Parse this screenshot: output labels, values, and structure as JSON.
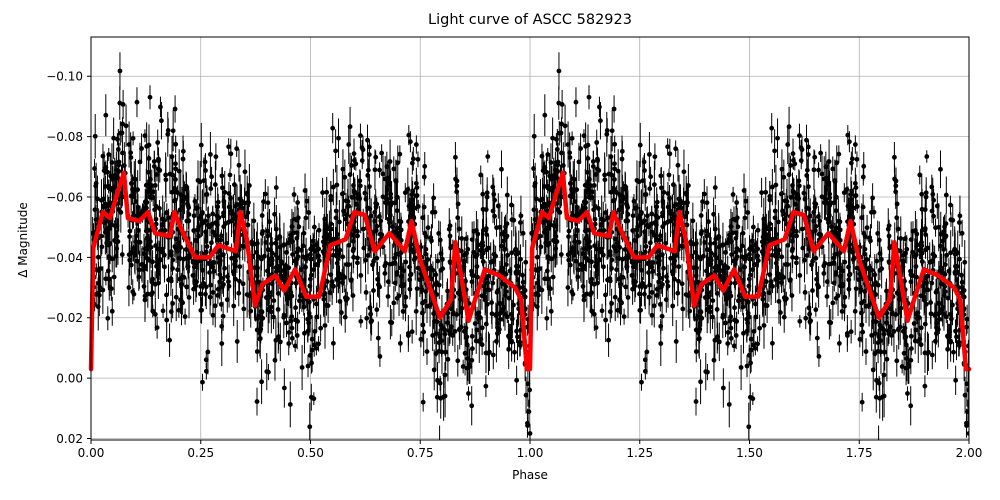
{
  "chart": {
    "title": "Light curve of ASCC 582923",
    "xlabel": "Phase",
    "ylabel": "Δ Magnitude"
  },
  "colors": {
    "data_points": "#000000",
    "model_curve": "#ff0000",
    "grid": "#b0b0b0",
    "axes": "#000000"
  },
  "chart_data": {
    "type": "scatter",
    "title": "Light curve of ASCC 582923",
    "xlabel": "Phase",
    "ylabel": "Δ Magnitude",
    "xlim": [
      0.0,
      2.0
    ],
    "ylim": [
      0.0205,
      -0.113
    ],
    "y_inverted": true,
    "grid": true,
    "legend": null,
    "x_ticks": [
      "0.00",
      "0.25",
      "0.50",
      "0.75",
      "1.00",
      "1.25",
      "1.50",
      "1.75",
      "2.00"
    ],
    "y_ticks": [
      "−0.10",
      "−0.08",
      "−0.06",
      "−0.04",
      "−0.02",
      "0.00",
      "0.02"
    ],
    "series": [
      {
        "name": "observations",
        "kind": "errorbar-scatter",
        "color": "#000000",
        "description": "Dense phase-folded photometry with error bars, spread roughly between −0.11 and +0.02 mag, repeated for phase 0–1 and 1–2"
      },
      {
        "name": "smoothed model",
        "kind": "line",
        "color": "#ff0000",
        "x": [
          0.0,
          0.005,
          0.027,
          0.043,
          0.066,
          0.075,
          0.084,
          0.11,
          0.13,
          0.146,
          0.18,
          0.19,
          0.21,
          0.237,
          0.27,
          0.29,
          0.33,
          0.34,
          0.355,
          0.374,
          0.39,
          0.42,
          0.44,
          0.465,
          0.49,
          0.52,
          0.545,
          0.58,
          0.6,
          0.624,
          0.646,
          0.68,
          0.715,
          0.73,
          0.75,
          0.795,
          0.82,
          0.83,
          0.845,
          0.86,
          0.875,
          0.897,
          0.93,
          0.966,
          0.98,
          0.993,
          1.0
        ],
        "y": [
          -0.003,
          -0.043,
          -0.055,
          -0.053,
          -0.064,
          -0.068,
          -0.053,
          -0.052,
          -0.055,
          -0.048,
          -0.047,
          -0.055,
          -0.048,
          -0.04,
          -0.04,
          -0.044,
          -0.042,
          -0.055,
          -0.046,
          -0.024,
          -0.031,
          -0.034,
          -0.029,
          -0.036,
          -0.027,
          -0.027,
          -0.044,
          -0.046,
          -0.055,
          -0.054,
          -0.042,
          -0.048,
          -0.042,
          -0.052,
          -0.039,
          -0.02,
          -0.026,
          -0.045,
          -0.032,
          -0.019,
          -0.026,
          -0.036,
          -0.034,
          -0.03,
          -0.026,
          -0.003,
          -0.003
        ],
        "repeat_period": 1.0
      }
    ]
  }
}
